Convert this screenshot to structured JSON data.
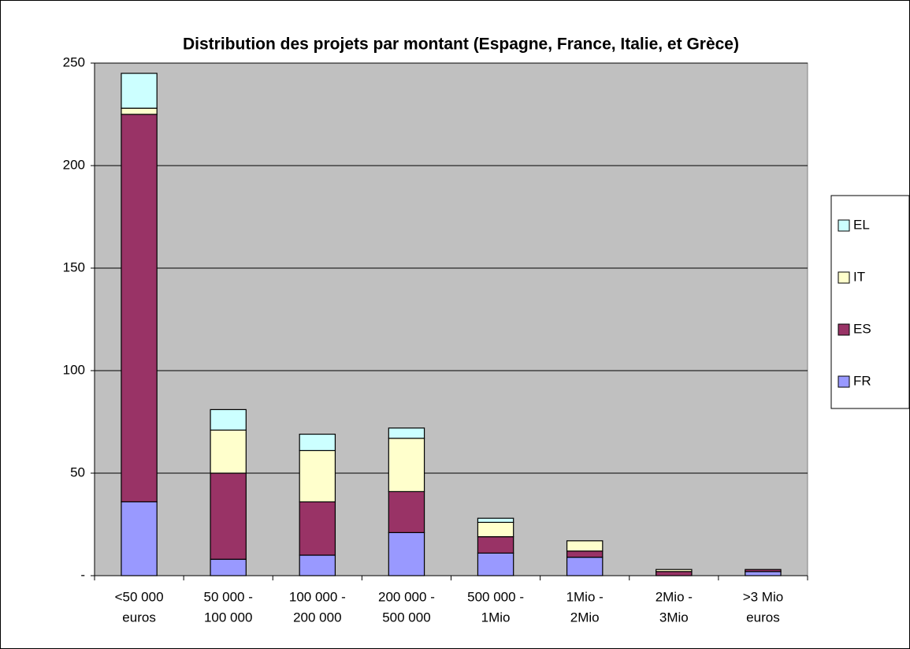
{
  "chart_data": {
    "type": "stacked_bar",
    "title": "Distribution des  projets par montant (Espagne, France, Italie, et Grèce)",
    "categories": [
      [
        "<50 000",
        "euros"
      ],
      [
        "50 000 -",
        "100 000"
      ],
      [
        "100 000 -",
        "200 000"
      ],
      [
        "200 000 -",
        "500 000"
      ],
      [
        "500 000 -",
        "1Mio"
      ],
      [
        "1Mio -",
        "2Mio"
      ],
      [
        "2Mio -",
        "3Mio"
      ],
      [
        ">3 Mio",
        "euros"
      ]
    ],
    "series": [
      {
        "name": "FR",
        "color": "#9999ff",
        "values": [
          36,
          8,
          10,
          21,
          11,
          9,
          0,
          2
        ]
      },
      {
        "name": "ES",
        "color": "#993366",
        "values": [
          189,
          42,
          26,
          20,
          8,
          3,
          2,
          1
        ]
      },
      {
        "name": "IT",
        "color": "#ffffcc",
        "values": [
          3,
          21,
          25,
          26,
          7,
          5,
          1,
          0
        ]
      },
      {
        "name": "EL",
        "color": "#ccffff",
        "values": [
          17,
          10,
          8,
          5,
          2,
          0,
          0,
          0
        ]
      }
    ],
    "ylim": [
      0,
      250
    ],
    "yticks": [
      {
        "value": 0,
        "label": "-"
      },
      50,
      100,
      150,
      200,
      250
    ],
    "grid": true,
    "legend": "right",
    "plot_background": "#c0c0c0"
  }
}
